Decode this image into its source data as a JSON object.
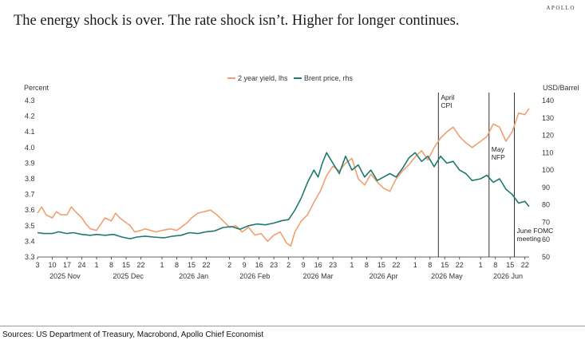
{
  "header": {
    "brand": "APOLLO",
    "title": "The energy shock is over. The rate shock isn’t. Higher for longer continues."
  },
  "footer": {
    "source": "Sources: US Department of Treasury, Macrobond, Apollo Chief Economist"
  },
  "colors": {
    "yield": "#f0a070",
    "brent": "#1f7a6e",
    "axis": "#333333",
    "event_line": "#333333"
  },
  "chart_data": {
    "type": "line",
    "ylabel": "Percent",
    "y2label": "USD/Barrel",
    "ylim": [
      3.3,
      4.3
    ],
    "y2lim": [
      50,
      140
    ],
    "yticks": [
      "3.3",
      "3.4",
      "3.5",
      "3.6",
      "3.7",
      "3.8",
      "3.9",
      "4.0",
      "4.1",
      "4.2",
      "4.3"
    ],
    "y2ticks": [
      "50",
      "60",
      "70",
      "80",
      "90",
      "100",
      "110",
      "120",
      "130",
      "140"
    ],
    "xlim": [
      "2025-11-03",
      "2026-06-24"
    ],
    "xticks": [
      {
        "date": "2025-11-03",
        "label": "3"
      },
      {
        "date": "2025-11-10",
        "label": "10"
      },
      {
        "date": "2025-11-17",
        "label": "17"
      },
      {
        "date": "2025-11-24",
        "label": "24"
      },
      {
        "date": "2025-12-01",
        "label": "1"
      },
      {
        "date": "2025-12-08",
        "label": "8"
      },
      {
        "date": "2025-12-15",
        "label": "15"
      },
      {
        "date": "2025-12-22",
        "label": "22"
      },
      {
        "date": "2026-01-01",
        "label": "1"
      },
      {
        "date": "2026-01-08",
        "label": "8"
      },
      {
        "date": "2026-01-15",
        "label": "15"
      },
      {
        "date": "2026-01-22",
        "label": "22"
      },
      {
        "date": "2026-02-02",
        "label": "2"
      },
      {
        "date": "2026-02-09",
        "label": "9"
      },
      {
        "date": "2026-02-16",
        "label": "16"
      },
      {
        "date": "2026-02-23",
        "label": "23"
      },
      {
        "date": "2026-03-02",
        "label": "2"
      },
      {
        "date": "2026-03-09",
        "label": "9"
      },
      {
        "date": "2026-03-16",
        "label": "16"
      },
      {
        "date": "2026-03-23",
        "label": "23"
      },
      {
        "date": "2026-04-01",
        "label": "1"
      },
      {
        "date": "2026-04-08",
        "label": "8"
      },
      {
        "date": "2026-04-15",
        "label": "15"
      },
      {
        "date": "2026-04-22",
        "label": "22"
      },
      {
        "date": "2026-05-01",
        "label": "1"
      },
      {
        "date": "2026-05-08",
        "label": "8"
      },
      {
        "date": "2026-05-15",
        "label": "15"
      },
      {
        "date": "2026-05-22",
        "label": "22"
      },
      {
        "date": "2026-06-01",
        "label": "1"
      },
      {
        "date": "2026-06-08",
        "label": "8"
      },
      {
        "date": "2026-06-15",
        "label": "15"
      },
      {
        "date": "2026-06-22",
        "label": "22"
      }
    ],
    "months": [
      {
        "date": "2025-11-16",
        "label": "2025 Nov"
      },
      {
        "date": "2025-12-16",
        "label": "2025 Dec"
      },
      {
        "date": "2026-01-16",
        "label": "2026 Jan"
      },
      {
        "date": "2026-02-14",
        "label": "2026 Feb"
      },
      {
        "date": "2026-03-16",
        "label": "2026 Mar"
      },
      {
        "date": "2026-04-16",
        "label": "2026 Apr"
      },
      {
        "date": "2026-05-16",
        "label": "2026 May"
      },
      {
        "date": "2026-06-14",
        "label": "2026 Jun"
      }
    ],
    "legend_position": "top-center",
    "events": [
      {
        "date": "2026-05-12",
        "lines": [
          "April",
          "CPI"
        ],
        "label_position": "top"
      },
      {
        "date": "2026-06-05",
        "lines": [
          "May",
          "NFP"
        ],
        "label_position": "middle"
      },
      {
        "date": "2026-06-17",
        "lines": [
          "June FOMC",
          "meeting"
        ],
        "label_position": "bottom"
      }
    ],
    "series": [
      {
        "name": "2 year yield, lhs",
        "axis": "left",
        "points": [
          [
            "2025-11-03",
            3.58
          ],
          [
            "2025-11-05",
            3.62
          ],
          [
            "2025-11-07",
            3.57
          ],
          [
            "2025-11-10",
            3.55
          ],
          [
            "2025-11-12",
            3.59
          ],
          [
            "2025-11-14",
            3.57
          ],
          [
            "2025-11-17",
            3.57
          ],
          [
            "2025-11-19",
            3.62
          ],
          [
            "2025-11-21",
            3.59
          ],
          [
            "2025-11-24",
            3.55
          ],
          [
            "2025-11-26",
            3.51
          ],
          [
            "2025-11-28",
            3.48
          ],
          [
            "2025-12-01",
            3.47
          ],
          [
            "2025-12-03",
            3.51
          ],
          [
            "2025-12-05",
            3.55
          ],
          [
            "2025-12-08",
            3.53
          ],
          [
            "2025-12-10",
            3.58
          ],
          [
            "2025-12-12",
            3.55
          ],
          [
            "2025-12-15",
            3.52
          ],
          [
            "2025-12-17",
            3.5
          ],
          [
            "2025-12-19",
            3.46
          ],
          [
            "2025-12-22",
            3.47
          ],
          [
            "2025-12-24",
            3.48
          ],
          [
            "2025-12-29",
            3.46
          ],
          [
            "2026-01-01",
            3.47
          ],
          [
            "2026-01-05",
            3.48
          ],
          [
            "2026-01-08",
            3.47
          ],
          [
            "2026-01-10",
            3.49
          ],
          [
            "2026-01-13",
            3.52
          ],
          [
            "2026-01-15",
            3.55
          ],
          [
            "2026-01-18",
            3.58
          ],
          [
            "2026-01-21",
            3.59
          ],
          [
            "2026-01-24",
            3.6
          ],
          [
            "2026-01-27",
            3.57
          ],
          [
            "2026-01-30",
            3.53
          ],
          [
            "2026-02-02",
            3.49
          ],
          [
            "2026-02-05",
            3.5
          ],
          [
            "2026-02-08",
            3.46
          ],
          [
            "2026-02-11",
            3.49
          ],
          [
            "2026-02-14",
            3.44
          ],
          [
            "2026-02-17",
            3.45
          ],
          [
            "2026-02-20",
            3.4
          ],
          [
            "2026-02-23",
            3.44
          ],
          [
            "2026-02-26",
            3.46
          ],
          [
            "2026-03-01",
            3.39
          ],
          [
            "2026-03-03",
            3.37
          ],
          [
            "2026-03-05",
            3.46
          ],
          [
            "2026-03-08",
            3.53
          ],
          [
            "2026-03-11",
            3.57
          ],
          [
            "2026-03-14",
            3.65
          ],
          [
            "2026-03-17",
            3.72
          ],
          [
            "2026-03-20",
            3.82
          ],
          [
            "2026-03-23",
            3.88
          ],
          [
            "2026-03-26",
            3.85
          ],
          [
            "2026-03-29",
            3.9
          ],
          [
            "2026-04-01",
            3.93
          ],
          [
            "2026-04-04",
            3.8
          ],
          [
            "2026-04-07",
            3.76
          ],
          [
            "2026-04-10",
            3.83
          ],
          [
            "2026-04-13",
            3.78
          ],
          [
            "2026-04-16",
            3.74
          ],
          [
            "2026-04-19",
            3.72
          ],
          [
            "2026-04-22",
            3.8
          ],
          [
            "2026-04-25",
            3.85
          ],
          [
            "2026-04-28",
            3.89
          ],
          [
            "2026-05-01",
            3.94
          ],
          [
            "2026-05-04",
            3.98
          ],
          [
            "2026-05-07",
            3.92
          ],
          [
            "2026-05-10",
            4.0
          ],
          [
            "2026-05-13",
            4.06
          ],
          [
            "2026-05-16",
            4.1
          ],
          [
            "2026-05-19",
            4.13
          ],
          [
            "2026-05-22",
            4.07
          ],
          [
            "2026-05-25",
            4.03
          ],
          [
            "2026-05-28",
            4.0
          ],
          [
            "2026-06-01",
            4.04
          ],
          [
            "2026-06-04",
            4.07
          ],
          [
            "2026-06-07",
            4.15
          ],
          [
            "2026-06-10",
            4.13
          ],
          [
            "2026-06-13",
            4.04
          ],
          [
            "2026-06-16",
            4.1
          ],
          [
            "2026-06-19",
            4.22
          ],
          [
            "2026-06-22",
            4.21
          ],
          [
            "2026-06-24",
            4.25
          ]
        ]
      },
      {
        "name": "Brent price, rhs",
        "axis": "right",
        "points": [
          [
            "2025-11-03",
            64
          ],
          [
            "2025-11-06",
            63.5
          ],
          [
            "2025-11-10",
            63.5
          ],
          [
            "2025-11-13",
            64.5
          ],
          [
            "2025-11-17",
            63.5
          ],
          [
            "2025-11-20",
            64
          ],
          [
            "2025-11-24",
            63
          ],
          [
            "2025-11-28",
            62.5
          ],
          [
            "2025-12-01",
            63
          ],
          [
            "2025-12-05",
            62.5
          ],
          [
            "2025-12-09",
            63
          ],
          [
            "2025-12-13",
            61.5
          ],
          [
            "2025-12-17",
            60.5
          ],
          [
            "2025-12-20",
            61.5
          ],
          [
            "2025-12-24",
            62
          ],
          [
            "2025-12-28",
            61.5
          ],
          [
            "2026-01-02",
            61
          ],
          [
            "2026-01-06",
            62
          ],
          [
            "2026-01-10",
            62.5
          ],
          [
            "2026-01-14",
            64
          ],
          [
            "2026-01-18",
            63.5
          ],
          [
            "2026-01-22",
            64.5
          ],
          [
            "2026-01-26",
            65
          ],
          [
            "2026-01-30",
            67
          ],
          [
            "2026-02-03",
            67.5
          ],
          [
            "2026-02-07",
            66
          ],
          [
            "2026-02-11",
            68
          ],
          [
            "2026-02-15",
            69
          ],
          [
            "2026-02-19",
            68.5
          ],
          [
            "2026-02-23",
            69.5
          ],
          [
            "2026-02-27",
            71
          ],
          [
            "2026-03-02",
            71.5
          ],
          [
            "2026-03-05",
            77
          ],
          [
            "2026-03-08",
            84
          ],
          [
            "2026-03-11",
            93
          ],
          [
            "2026-03-14",
            100
          ],
          [
            "2026-03-16",
            96
          ],
          [
            "2026-03-18",
            104
          ],
          [
            "2026-03-20",
            110
          ],
          [
            "2026-03-23",
            104
          ],
          [
            "2026-03-26",
            98
          ],
          [
            "2026-03-29",
            108
          ],
          [
            "2026-04-01",
            100
          ],
          [
            "2026-04-04",
            103
          ],
          [
            "2026-04-07",
            96
          ],
          [
            "2026-04-10",
            100
          ],
          [
            "2026-04-13",
            94
          ],
          [
            "2026-04-16",
            96
          ],
          [
            "2026-04-19",
            98
          ],
          [
            "2026-04-22",
            96
          ],
          [
            "2026-04-25",
            101
          ],
          [
            "2026-04-28",
            107
          ],
          [
            "2026-05-01",
            110
          ],
          [
            "2026-05-04",
            105
          ],
          [
            "2026-05-07",
            108
          ],
          [
            "2026-05-10",
            102
          ],
          [
            "2026-05-13",
            108
          ],
          [
            "2026-05-16",
            104
          ],
          [
            "2026-05-19",
            105
          ],
          [
            "2026-05-22",
            100
          ],
          [
            "2026-05-25",
            98
          ],
          [
            "2026-05-28",
            94
          ],
          [
            "2026-06-01",
            95
          ],
          [
            "2026-06-04",
            97
          ],
          [
            "2026-06-07",
            93
          ],
          [
            "2026-06-10",
            95
          ],
          [
            "2026-06-13",
            89
          ],
          [
            "2026-06-16",
            86
          ],
          [
            "2026-06-19",
            81
          ],
          [
            "2026-06-22",
            82
          ],
          [
            "2026-06-24",
            79
          ]
        ]
      }
    ]
  }
}
